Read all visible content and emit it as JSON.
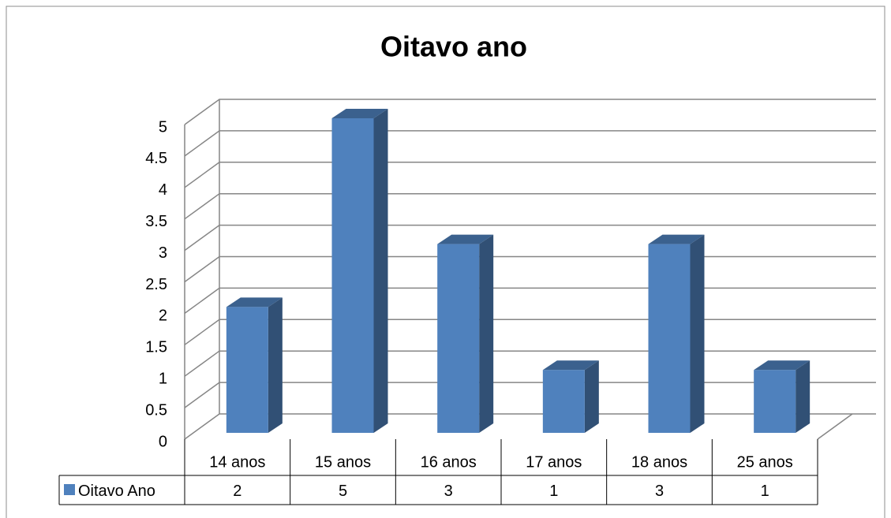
{
  "chart_data": {
    "type": "bar3d",
    "title": "Oitavo ano",
    "categories": [
      "14 anos",
      "15 anos",
      "16 anos",
      "17 anos",
      "18 anos",
      "25 anos"
    ],
    "series": [
      {
        "name": "Oitavo Ano",
        "color": "#4f81bd",
        "values": [
          2,
          5,
          3,
          1,
          3,
          1
        ]
      }
    ],
    "ylim": [
      0,
      5
    ],
    "yticks": [
      0,
      0.5,
      1,
      1.5,
      2,
      2.5,
      3,
      3.5,
      4,
      4.5,
      5
    ],
    "grid": true,
    "data_table": true
  }
}
